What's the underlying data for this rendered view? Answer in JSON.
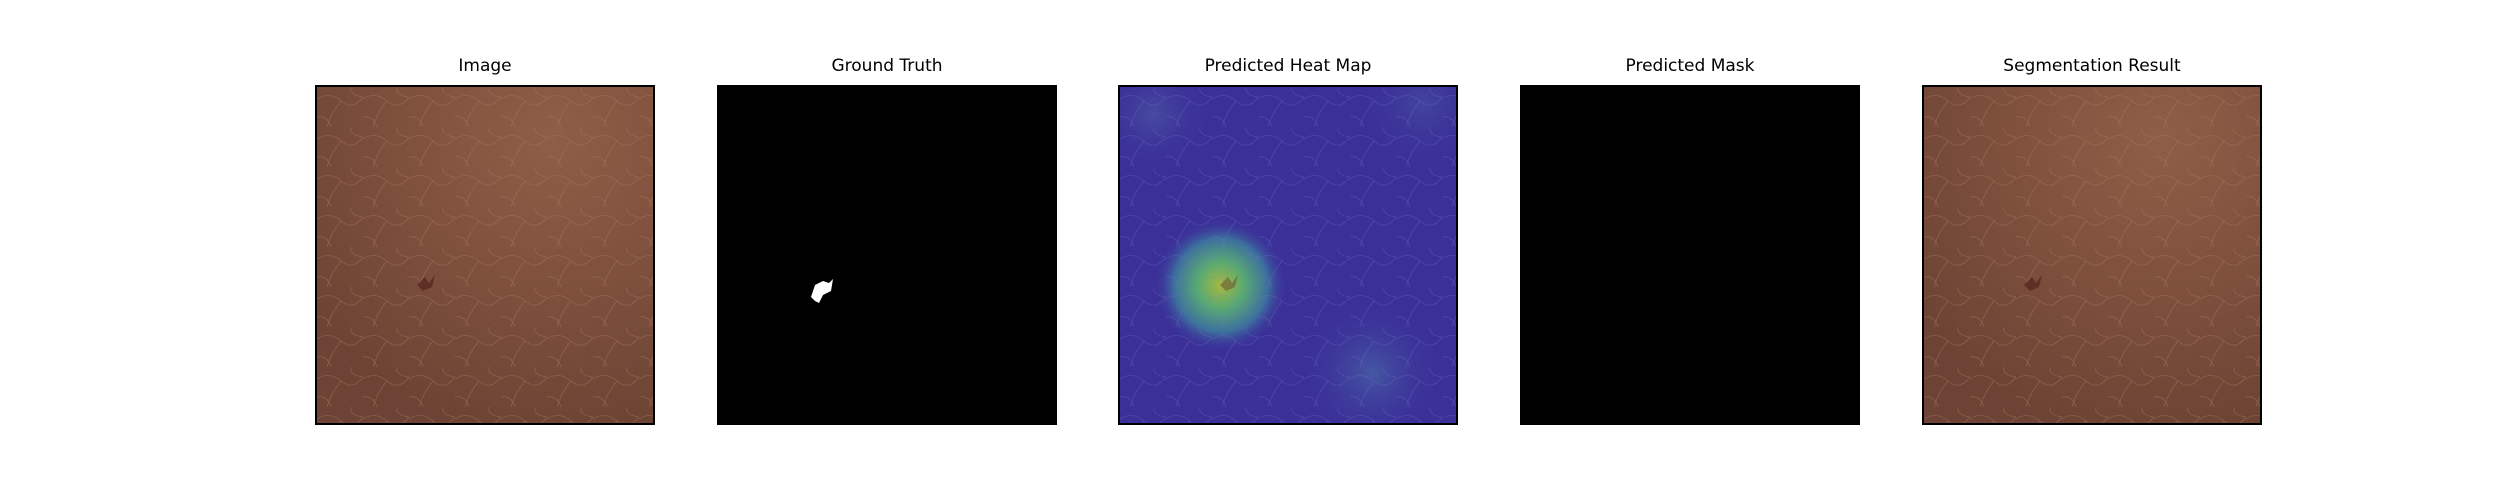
{
  "figure": {
    "panels": [
      {
        "title": "Image"
      },
      {
        "title": "Ground Truth"
      },
      {
        "title": "Predicted Heat Map"
      },
      {
        "title": "Predicted Mask"
      },
      {
        "title": "Segmentation Result"
      }
    ]
  },
  "colors": {
    "background": "#ffffff",
    "frame": "#000000",
    "leather_base": "#7a4e3a",
    "leather_highlight": "#8c5b44",
    "defect": "#5a2a22",
    "mask_background": "#000000",
    "mask_foreground": "#ffffff",
    "heatmap_low": "#3a2f9a",
    "heatmap_mid": "#2f8a8c",
    "heatmap_high": "#8fb04a"
  }
}
